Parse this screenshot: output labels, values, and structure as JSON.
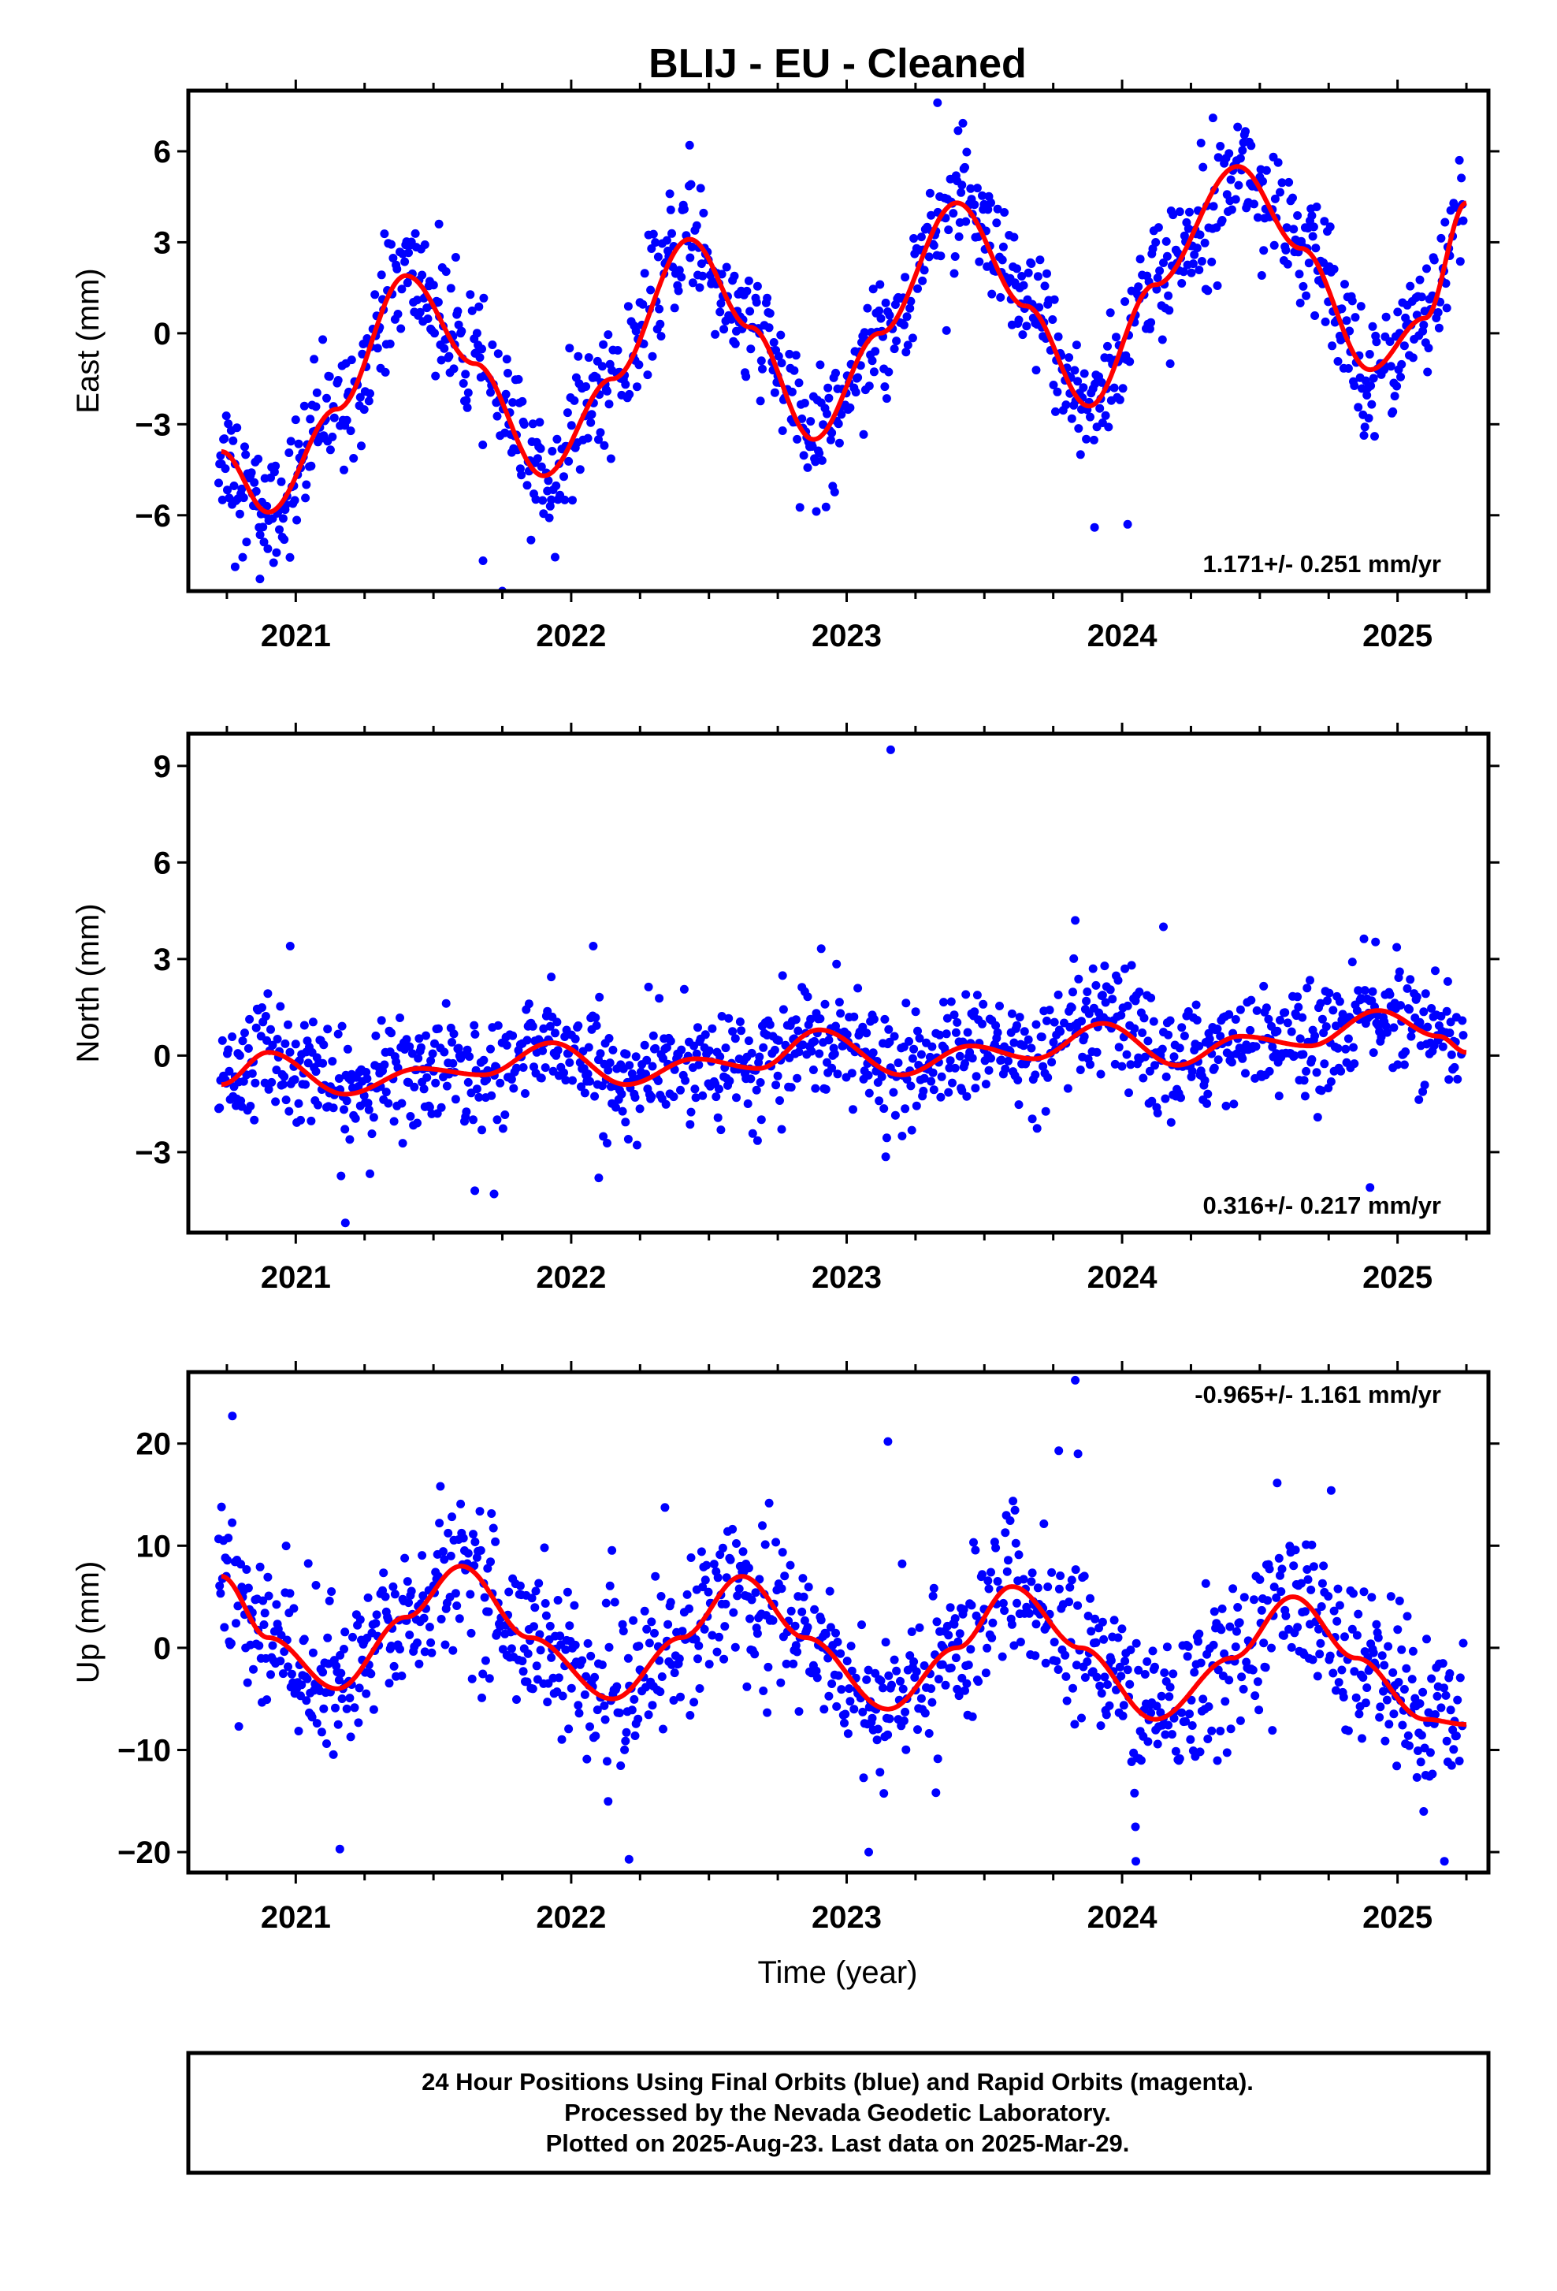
{
  "title": "BLIJ  - EU - Cleaned",
  "xlabel": "Time (year)",
  "footer": {
    "line1": "24 Hour Positions Using Final Orbits (blue) and Rapid Orbits (magenta).",
    "line2": "Processed by the Nevada Geodetic Laboratory.",
    "line3": "Plotted on 2025-Aug-23. Last data on 2025-Mar-29."
  },
  "colors": {
    "points": "#0000ff",
    "fit": "#ff0000",
    "frame": "#000000"
  },
  "chart_data": [
    {
      "type": "scatter",
      "panel": "east",
      "ylabel": "East (mm)",
      "rate_label": "1.171+/- 0.251 mm/yr",
      "xlim": [
        2020.61,
        2025.33
      ],
      "ylim": [
        -8.5,
        8.0
      ],
      "yticks": [
        -6,
        -3,
        0,
        3,
        6
      ],
      "xticks": [
        2021,
        2022,
        2023,
        2024,
        2025
      ],
      "fit": {
        "x": [
          2020.73,
          2020.9,
          2021.15,
          2021.4,
          2021.65,
          2021.9,
          2022.15,
          2022.43,
          2022.65,
          2022.88,
          2023.12,
          2023.4,
          2023.65,
          2023.88,
          2024.12,
          2024.42,
          2024.65,
          2024.9,
          2025.1,
          2025.25
        ],
        "y": [
          -3.9,
          -5.9,
          -2.5,
          1.9,
          -1.0,
          -4.7,
          -1.5,
          3.1,
          0.2,
          -3.5,
          0.0,
          4.3,
          0.9,
          -2.4,
          1.6,
          5.5,
          2.8,
          -1.2,
          0.5,
          4.3
        ]
      },
      "points": {
        "noise": 1.0,
        "outliers": [
          [
            2021.75,
            -8.5
          ],
          [
            2021.68,
            -7.5
          ],
          [
            2020.87,
            -8.1
          ],
          [
            2023.33,
            7.6
          ],
          [
            2024.33,
            7.1
          ],
          [
            2022.43,
            6.2
          ],
          [
            2023.9,
            -6.4
          ],
          [
            2024.02,
            -6.3
          ],
          [
            2021.52,
            3.6
          ],
          [
            2020.78,
            -7.7
          ]
        ]
      }
    },
    {
      "type": "scatter",
      "panel": "north",
      "ylabel": "North (mm)",
      "rate_label": "0.316+/- 0.217 mm/yr",
      "xlim": [
        2020.61,
        2025.33
      ],
      "ylim": [
        -5.5,
        10.0
      ],
      "yticks": [
        -3,
        0,
        3,
        6,
        9
      ],
      "xticks": [
        2021,
        2022,
        2023,
        2024,
        2025
      ],
      "fit": {
        "x": [
          2020.73,
          2020.9,
          2021.18,
          2021.45,
          2021.68,
          2021.93,
          2022.2,
          2022.45,
          2022.68,
          2022.9,
          2023.2,
          2023.45,
          2023.68,
          2023.93,
          2024.2,
          2024.43,
          2024.68,
          2024.93,
          2025.15,
          2025.25
        ],
        "y": [
          -0.9,
          0.1,
          -1.2,
          -0.4,
          -0.6,
          0.4,
          -0.9,
          -0.1,
          -0.4,
          0.8,
          -0.6,
          0.3,
          -0.1,
          1.0,
          -0.3,
          0.6,
          0.3,
          1.4,
          0.6,
          0.1
        ]
      },
      "points": {
        "noise": 0.85,
        "outliers": [
          [
            2023.16,
            9.5
          ],
          [
            2021.18,
            -5.2
          ],
          [
            2024.9,
            -4.1
          ],
          [
            2021.72,
            -4.3
          ],
          [
            2021.65,
            -4.2
          ],
          [
            2022.1,
            -3.8
          ],
          [
            2023.83,
            4.2
          ],
          [
            2024.15,
            4.0
          ],
          [
            2020.98,
            3.4
          ],
          [
            2022.08,
            3.4
          ]
        ]
      }
    },
    {
      "type": "scatter",
      "panel": "up",
      "ylabel": "Up (mm)",
      "rate_label": "-0.965+/- 1.161 mm/yr",
      "xlim": [
        2020.61,
        2025.33
      ],
      "ylim": [
        -22.0,
        27.0
      ],
      "yticks": [
        -20,
        -10,
        0,
        10,
        20
      ],
      "xticks": [
        2021,
        2022,
        2023,
        2024,
        2025
      ],
      "fit": {
        "x": [
          2020.73,
          2020.9,
          2021.15,
          2021.4,
          2021.6,
          2021.85,
          2022.15,
          2022.4,
          2022.62,
          2022.85,
          2023.15,
          2023.4,
          2023.6,
          2023.85,
          2024.12,
          2024.4,
          2024.62,
          2024.85,
          2025.1,
          2025.25
        ],
        "y": [
          7.0,
          1.0,
          -4.0,
          3.0,
          8.0,
          1.0,
          -5.0,
          1.0,
          7.0,
          1.0,
          -6.0,
          0.0,
          6.0,
          0.0,
          -7.0,
          -1.0,
          5.0,
          -1.0,
          -7.0,
          -7.5
        ]
      },
      "points": {
        "noise": 3.8,
        "outliers": [
          [
            2023.83,
            26.2
          ],
          [
            2020.77,
            22.7
          ],
          [
            2023.15,
            20.2
          ],
          [
            2024.05,
            -20.9
          ],
          [
            2025.17,
            -20.9
          ],
          [
            2022.21,
            -20.7
          ],
          [
            2023.08,
            -20.0
          ],
          [
            2021.16,
            -19.7
          ],
          [
            2023.77,
            19.3
          ],
          [
            2023.84,
            19.0
          ]
        ]
      }
    }
  ]
}
